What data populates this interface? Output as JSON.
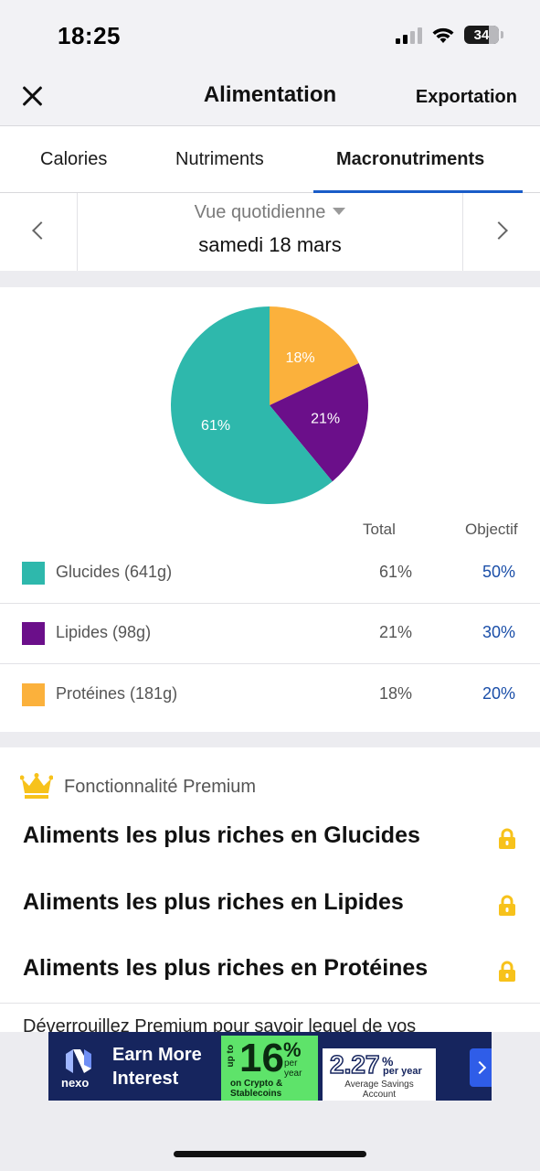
{
  "status_bar": {
    "time": "18:25",
    "battery": "34"
  },
  "nav": {
    "title": "Alimentation",
    "export_label": "Exportation",
    "close_icon": "close-icon"
  },
  "tabs": [
    {
      "label": "Calories",
      "selected": false
    },
    {
      "label": "Nutriments",
      "selected": false
    },
    {
      "label": "Macronutriments",
      "selected": true
    }
  ],
  "accent_color": "#1a5cc8",
  "date_nav": {
    "view_mode": "Vue quotidienne",
    "date": "samedi 18 mars"
  },
  "chart_data": {
    "type": "pie",
    "slices": [
      {
        "label": "Protéines",
        "value": 18,
        "display": "18%",
        "color": "#fbb13c"
      },
      {
        "label": "Lipides",
        "value": 21,
        "display": "21%",
        "color": "#6b0f8a"
      },
      {
        "label": "Glucides",
        "value": 61,
        "display": "61%",
        "color": "#2eb8ac"
      }
    ]
  },
  "table": {
    "col_total": "Total",
    "col_goal": "Objectif",
    "rows": [
      {
        "name": "Glucides (641g)",
        "total": "61%",
        "goal": "50%",
        "color": "#2eb8ac"
      },
      {
        "name": "Lipides (98g)",
        "total": "21%",
        "goal": "30%",
        "color": "#6b0f8a"
      },
      {
        "name": "Protéines (181g)",
        "total": "18%",
        "goal": "20%",
        "color": "#fbb13c"
      }
    ]
  },
  "premium": {
    "label": "Fonctionnalité Premium",
    "items": [
      {
        "text": "Aliments les plus riches en Glucides"
      },
      {
        "text": "Aliments les plus riches en Lipides"
      },
      {
        "text": "Aliments les plus riches en Protéines"
      }
    ],
    "description": "Déverrouillez Premium pour savoir lequel de vos"
  },
  "ad": {
    "brand": "nexo",
    "headline_1": "Earn More",
    "headline_2": "Interest",
    "up_to": "up to",
    "rate": "16",
    "rate_pct": "%",
    "rate_suffix_1": "per",
    "rate_suffix_2": "year",
    "rate_note_1": "on Crypto &",
    "rate_note_2": "Stablecoins",
    "compare_rate": "2.27",
    "compare_pct": "%",
    "compare_suffix": "per year",
    "compare_note_1": "Average Savings",
    "compare_note_2": "Account"
  }
}
